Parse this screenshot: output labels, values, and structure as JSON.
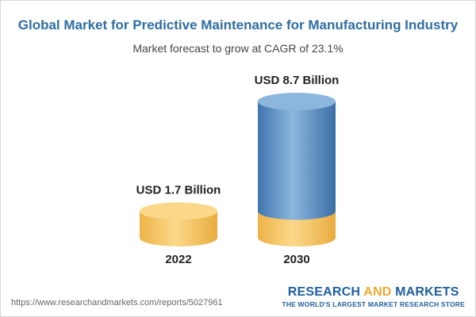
{
  "chart_data": {
    "type": "bar",
    "title": "Global Market for Predictive Maintenance for Manufacturing Industry",
    "subtitle": "Market forecast to grow at CAGR of 23.1%",
    "categories": [
      "2022",
      "2030"
    ],
    "values": [
      1.7,
      8.7
    ],
    "data_labels": [
      "USD 1.7 Billion",
      "USD 8.7 Billion"
    ],
    "unit": "USD Billion",
    "xlabel": "",
    "ylabel": "",
    "ylim": [
      0,
      8.7
    ],
    "grid": false,
    "legend": "none",
    "colors": {
      "base": "#f5c45e",
      "base_dark": "#e8ae3e",
      "growth": "#4e86bf",
      "growth_dark": "#3a6fa6",
      "growth_light": "#8db6dd"
    }
  },
  "footer": {
    "source_url": "https://www.researchandmarkets.com/reports/5027961"
  },
  "brand": {
    "name_part1": "RESEARCH ",
    "name_part2": "AND",
    "name_part3": " MARKETS",
    "tagline": "THE WORLD'S LARGEST MARKET RESEARCH STORE"
  }
}
